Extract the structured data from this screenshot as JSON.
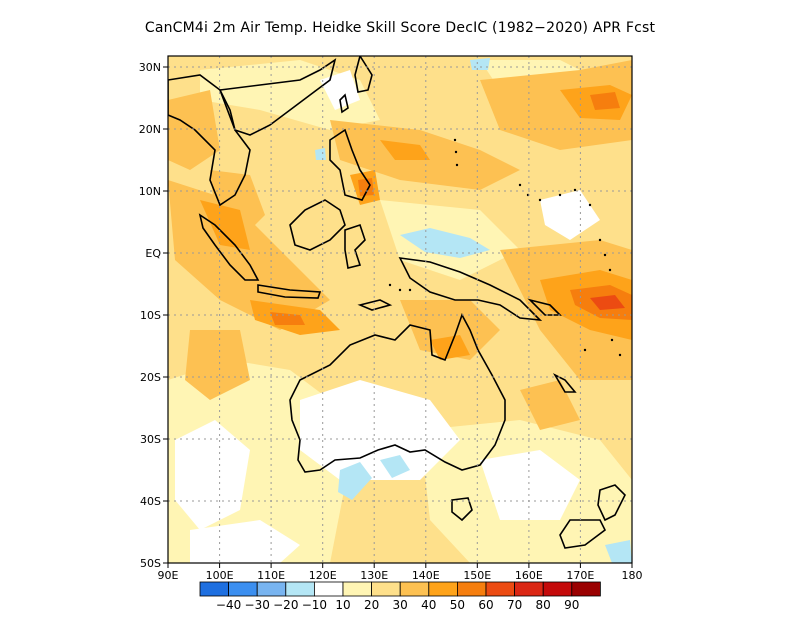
{
  "title": "CanCM4i  2m Air Temp. Heidke Skill Score DecIC (1982−2020) APR Fcst",
  "map": {
    "lon_range": [
      90,
      180
    ],
    "lat_range": [
      -50,
      32
    ],
    "x_ticks": [
      "90E",
      "100E",
      "110E",
      "120E",
      "130E",
      "140E",
      "150E",
      "160E",
      "170E",
      "180"
    ],
    "y_ticks": [
      "30N",
      "20N",
      "10N",
      "EQ",
      "10S",
      "20S",
      "30S",
      "40S",
      "50S"
    ],
    "gridlines": "dotted"
  },
  "colorbar": {
    "colors": [
      "#1e6fe0",
      "#3c8ff0",
      "#78b4f0",
      "#b4e6f5",
      "#ffffff",
      "#fff5b4",
      "#fee08b",
      "#fdc152",
      "#fea31a",
      "#f67e0e",
      "#ec4b12",
      "#db2714",
      "#c40a0a",
      "#9a0000"
    ],
    "labels": [
      "−40",
      "−30",
      "−20",
      "−10",
      "10",
      "20",
      "30",
      "40",
      "50",
      "60",
      "70",
      "80",
      "90"
    ]
  }
}
